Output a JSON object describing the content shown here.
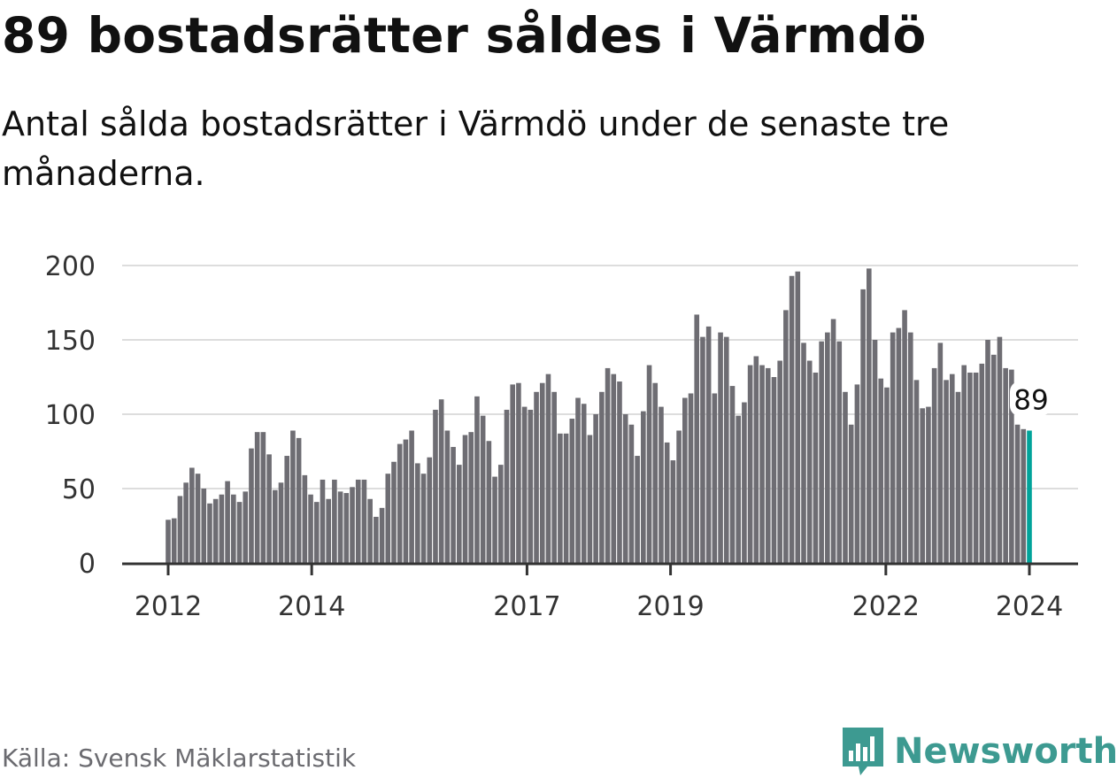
{
  "title": "89 bostadsrätter såldes i Värmdö",
  "subtitle": "Antal sålda bostadsrätter i Värmdö under de senaste tre månaderna.",
  "source": "Källa: Svensk Mäklarstatistik",
  "logo": "Newsworthy",
  "colors": {
    "bar": "#6e6d73",
    "highlight": "#00a39a",
    "grid": "#dddddd",
    "axis": "#333333",
    "logo": "#3d9a91"
  },
  "chart_data": {
    "type": "bar",
    "title": "89 bostadsrätter såldes i Värmdö",
    "xlabel": "",
    "ylabel": "",
    "ylim": [
      0,
      200
    ],
    "yticks": [
      0,
      50,
      100,
      150,
      200
    ],
    "xticks": [
      "2012",
      "2014",
      "2017",
      "2019",
      "2022",
      "2024"
    ],
    "x_start": "2012",
    "x_end": "2024",
    "grid": true,
    "highlight_label": "89",
    "values": [
      29,
      30,
      45,
      54,
      64,
      60,
      50,
      40,
      43,
      46,
      55,
      46,
      41,
      48,
      77,
      88,
      88,
      73,
      49,
      54,
      72,
      89,
      84,
      59,
      46,
      41,
      56,
      43,
      56,
      48,
      47,
      51,
      56,
      56,
      43,
      31,
      37,
      60,
      68,
      80,
      83,
      89,
      67,
      60,
      71,
      103,
      110,
      89,
      78,
      66,
      86,
      88,
      112,
      99,
      82,
      58,
      66,
      103,
      120,
      121,
      105,
      103,
      115,
      121,
      127,
      115,
      87,
      87,
      97,
      111,
      107,
      86,
      100,
      115,
      131,
      127,
      122,
      100,
      93,
      72,
      102,
      133,
      121,
      105,
      81,
      69,
      89,
      111,
      114,
      167,
      152,
      159,
      114,
      155,
      152,
      119,
      99,
      108,
      133,
      139,
      133,
      131,
      125,
      136,
      170,
      193,
      196,
      148,
      136,
      128,
      149,
      155,
      164,
      149,
      115,
      93,
      120,
      184,
      198,
      150,
      124,
      118,
      155,
      158,
      170,
      155,
      123,
      104,
      105,
      131,
      148,
      123,
      127,
      115,
      133,
      128,
      128,
      134,
      150,
      140,
      152,
      131,
      130,
      93,
      90,
      89
    ]
  }
}
